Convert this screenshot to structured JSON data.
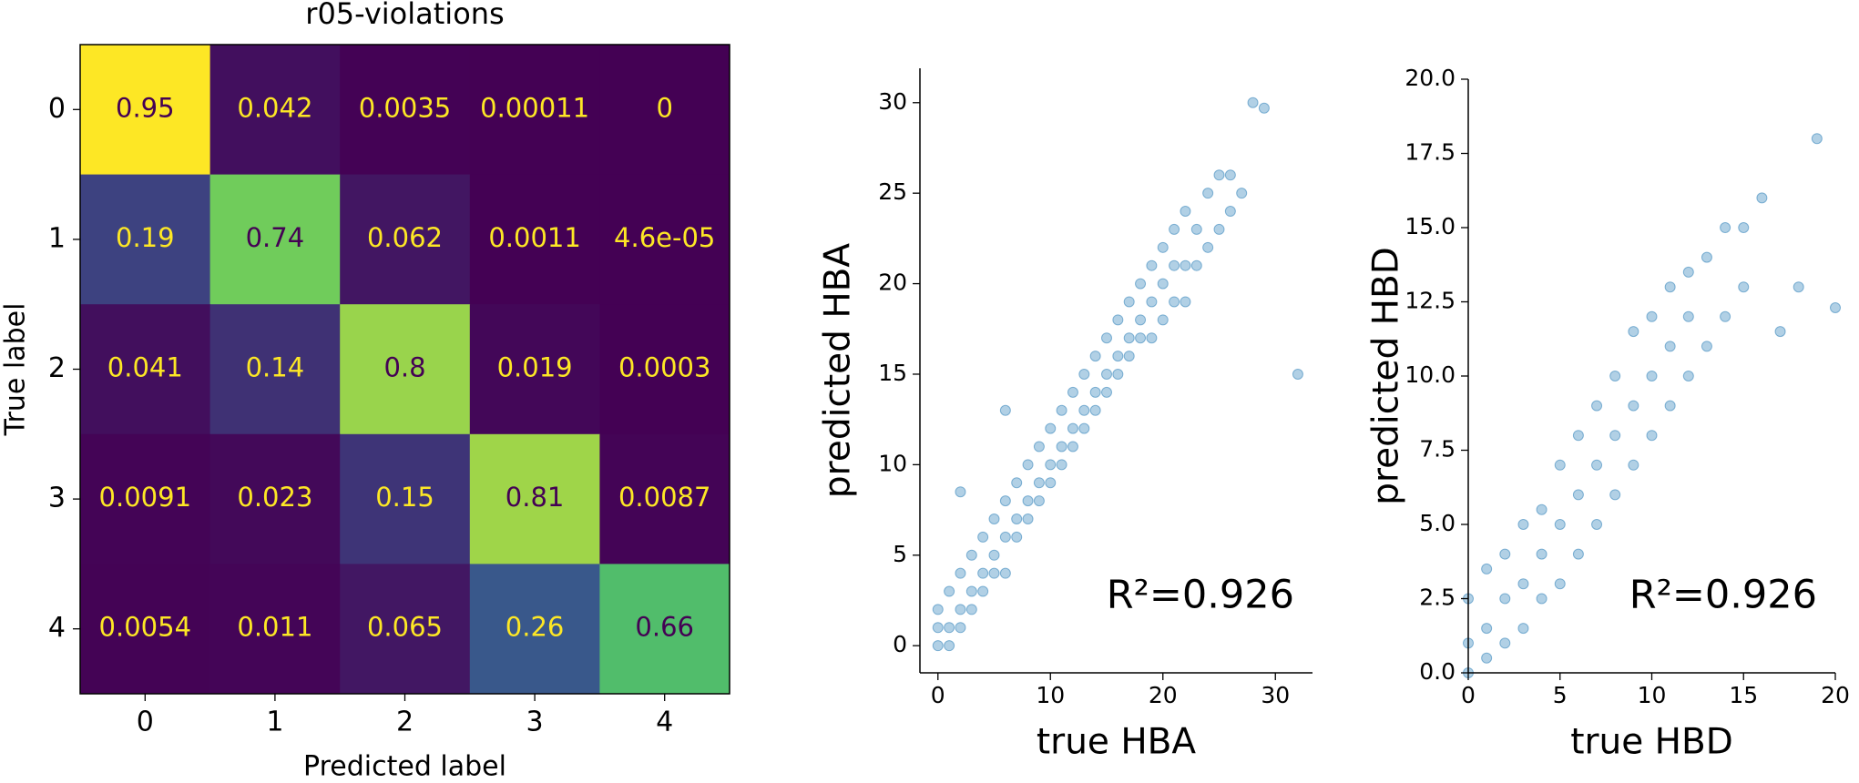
{
  "chart_data": [
    {
      "type": "heatmap",
      "title": "r05-violations",
      "x_label": "Predicted label",
      "y_label": "True label",
      "colormap": "viridis",
      "x_categories": [
        0,
        1,
        2,
        3,
        4
      ],
      "y_categories": [
        0,
        1,
        2,
        3,
        4
      ],
      "values": [
        [
          0.95,
          0.042,
          0.0035,
          0.00011,
          0
        ],
        [
          0.19,
          0.74,
          0.062,
          0.0011,
          4.6e-05
        ],
        [
          0.041,
          0.14,
          0.8,
          0.019,
          0.0003
        ],
        [
          0.0091,
          0.023,
          0.15,
          0.81,
          0.0087
        ],
        [
          0.0054,
          0.011,
          0.065,
          0.26,
          0.66
        ]
      ],
      "value_labels": [
        [
          "0.95",
          "0.042",
          "0.0035",
          "0.00011",
          "0"
        ],
        [
          "0.19",
          "0.74",
          "0.062",
          "0.0011",
          "4.6e-05"
        ],
        [
          "0.041",
          "0.14",
          "0.8",
          "0.019",
          "0.0003"
        ],
        [
          "0.0091",
          "0.023",
          "0.15",
          "0.81",
          "0.0087"
        ],
        [
          "0.0054",
          "0.011",
          "0.065",
          "0.26",
          "0.66"
        ]
      ]
    },
    {
      "type": "scatter",
      "x_label": "true HBA",
      "y_label": "predicted HBA",
      "annotation": "R²=0.926",
      "color": "#1f77b4",
      "xlim": [
        -1.6,
        33.3
      ],
      "ylim": [
        -1.5,
        31.9
      ],
      "xticks": [
        0,
        10,
        20,
        30
      ],
      "yticks": [
        0,
        5,
        10,
        15,
        20,
        25,
        30
      ],
      "x": [
        0,
        0,
        0,
        1,
        1,
        1,
        2,
        2,
        2,
        3,
        3,
        3,
        4,
        4,
        4,
        5,
        5,
        5,
        6,
        6,
        6,
        7,
        7,
        7,
        8,
        8,
        8,
        9,
        9,
        9,
        10,
        10,
        10,
        11,
        11,
        11,
        12,
        12,
        12,
        13,
        13,
        13,
        14,
        14,
        14,
        15,
        15,
        15,
        16,
        16,
        16,
        17,
        17,
        17,
        18,
        18,
        18,
        19,
        19,
        19,
        20,
        20,
        20,
        21,
        21,
        21,
        22,
        22,
        22,
        23,
        23,
        24,
        24,
        25,
        25,
        26,
        26,
        27,
        28,
        29,
        32,
        2,
        6
      ],
      "y": [
        0,
        1,
        2,
        0,
        1,
        3,
        1,
        2,
        4,
        2,
        3,
        5,
        3,
        4,
        6,
        4,
        5,
        7,
        4,
        6,
        8,
        6,
        7,
        9,
        7,
        8,
        10,
        8,
        9,
        11,
        9,
        10,
        12,
        10,
        11,
        13,
        11,
        12,
        14,
        12,
        13,
        15,
        13,
        14,
        16,
        14,
        15,
        17,
        15,
        16,
        18,
        16,
        17,
        19,
        17,
        18,
        20,
        17,
        19,
        21,
        18,
        20,
        22,
        19,
        21,
        23,
        19,
        21,
        24,
        21,
        23,
        22,
        25,
        23,
        26,
        24,
        26,
        25,
        30,
        29.7,
        15,
        8.5,
        13
      ]
    },
    {
      "type": "scatter",
      "x_label": "true HBD",
      "y_label": "predicted HBD",
      "annotation": "R²=0.926",
      "color": "#1f77b4",
      "xlim": [
        0,
        20
      ],
      "ylim": [
        0,
        20
      ],
      "xticks": [
        0,
        5,
        10,
        15,
        20
      ],
      "yticks": [
        {
          "value": 0,
          "label": "0.0"
        },
        2.5,
        {
          "value": 5,
          "label": "5.0"
        },
        7.5,
        {
          "value": 10,
          "label": "10.0"
        },
        12.5,
        {
          "value": 15,
          "label": "15.0"
        },
        17.5,
        {
          "value": 20,
          "label": "20.0"
        }
      ],
      "x": [
        0,
        0,
        0,
        1,
        1,
        1,
        2,
        2,
        2,
        3,
        3,
        3,
        4,
        4,
        4,
        5,
        5,
        5,
        6,
        6,
        6,
        7,
        7,
        7,
        8,
        8,
        8,
        9,
        9,
        9,
        10,
        10,
        10,
        11,
        11,
        11,
        12,
        12,
        12,
        13,
        13,
        14,
        14,
        15,
        15,
        16,
        17,
        18,
        19,
        20
      ],
      "y": [
        0,
        1,
        2.5,
        0.5,
        1.5,
        3.5,
        1,
        2.5,
        4,
        1.5,
        3,
        5,
        2.5,
        4,
        5.5,
        3,
        5,
        7,
        4,
        6,
        8,
        5,
        7,
        9,
        6,
        8,
        10,
        7,
        9,
        11.5,
        8,
        10,
        12,
        9,
        11,
        13,
        10,
        12,
        13.5,
        11,
        14,
        12,
        15,
        13,
        15,
        16,
        11.5,
        13,
        18,
        12.3
      ]
    }
  ]
}
